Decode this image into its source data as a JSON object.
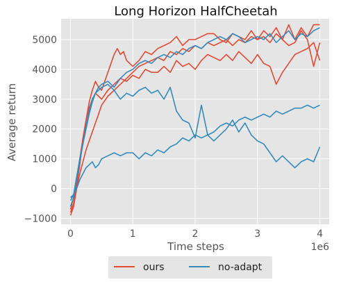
{
  "chart_data": {
    "type": "line",
    "title": "Long Horizon HalfCheetah",
    "xlabel": "Time steps",
    "ylabel": "Average return",
    "x_offset_label": "1e6",
    "xlim": [
      -0.15,
      4.15
    ],
    "ylim": [
      -1200,
      5700
    ],
    "xticks": [
      0,
      1,
      2,
      3,
      4
    ],
    "xtick_labels": [
      "0",
      "1",
      "2",
      "3",
      "4"
    ],
    "yticks": [
      -1000,
      0,
      1000,
      2000,
      3000,
      4000,
      5000
    ],
    "ytick_labels": [
      "−1000",
      "0",
      "1000",
      "2000",
      "3000",
      "4000",
      "5000"
    ],
    "grid": true,
    "legend_position": "bottom-center",
    "legend": [
      {
        "label": "ours",
        "color": "#e24a33"
      },
      {
        "label": "no-adapt",
        "color": "#348abd"
      }
    ],
    "background_color": "#e5e5e5",
    "series": [
      {
        "group": "ours",
        "color": "#e24a33",
        "x": [
          0.0,
          0.05,
          0.1,
          0.15,
          0.2,
          0.25,
          0.3,
          0.35,
          0.4,
          0.45,
          0.5,
          0.6,
          0.7,
          0.75,
          0.8,
          0.85,
          0.9,
          1.0,
          1.1,
          1.2,
          1.3,
          1.4,
          1.5,
          1.6,
          1.7,
          1.8,
          1.9,
          2.0,
          2.1,
          2.2,
          2.3,
          2.4,
          2.5,
          2.6,
          2.7,
          2.8,
          2.9,
          3.0,
          3.1,
          3.2,
          3.3,
          3.4,
          3.5,
          3.6,
          3.7,
          3.8,
          3.9,
          4.0
        ],
        "y": [
          -800,
          -500,
          100,
          800,
          1600,
          2300,
          2900,
          3300,
          3600,
          3400,
          3300,
          3900,
          4500,
          4700,
          4500,
          4600,
          4300,
          4100,
          4300,
          4600,
          4500,
          4700,
          4800,
          4900,
          5100,
          4800,
          5000,
          5000,
          5100,
          5200,
          5200,
          5000,
          4900,
          5200,
          5100,
          5000,
          5300,
          5000,
          5300,
          5100,
          5400,
          5000,
          5500,
          5000,
          5400,
          5100,
          5500,
          5500
        ]
      },
      {
        "group": "ours",
        "color": "#e24a33",
        "x": [
          0.0,
          0.05,
          0.1,
          0.15,
          0.2,
          0.25,
          0.3,
          0.35,
          0.4,
          0.45,
          0.5,
          0.6,
          0.7,
          0.8,
          0.9,
          1.0,
          1.1,
          1.2,
          1.3,
          1.4,
          1.5,
          1.6,
          1.7,
          1.8,
          1.9,
          2.0,
          2.1,
          2.2,
          2.3,
          2.4,
          2.5,
          2.6,
          2.7,
          2.8,
          2.9,
          3.0,
          3.1,
          3.2,
          3.3,
          3.4,
          3.5,
          3.6,
          3.7,
          3.8,
          3.9,
          4.0
        ],
        "y": [
          -700,
          -300,
          300,
          1000,
          1700,
          2300,
          2700,
          3000,
          3200,
          3100,
          3000,
          3300,
          3500,
          3700,
          3600,
          3800,
          3700,
          4000,
          3900,
          3900,
          4100,
          3900,
          4300,
          4100,
          4200,
          4000,
          4300,
          4500,
          4400,
          4300,
          4500,
          4300,
          4600,
          4400,
          4200,
          4500,
          4200,
          4100,
          3500,
          3900,
          4200,
          4500,
          4600,
          4700,
          4900,
          4300
        ]
      },
      {
        "group": "ours",
        "color": "#e24a33",
        "x": [
          0.0,
          0.05,
          0.1,
          0.15,
          0.2,
          0.25,
          0.3,
          0.35,
          0.4,
          0.45,
          0.5,
          0.6,
          0.7,
          0.8,
          0.9,
          1.0,
          1.1,
          1.2,
          1.3,
          1.4,
          1.5,
          1.6,
          1.7,
          1.8,
          1.9,
          2.0,
          2.1,
          2.2,
          2.3,
          2.4,
          2.5,
          2.6,
          2.7,
          2.8,
          2.9,
          3.0,
          3.1,
          3.2,
          3.3,
          3.4,
          3.5,
          3.6,
          3.7,
          3.8,
          3.9,
          4.0
        ],
        "y": [
          -900,
          -600,
          0,
          500,
          900,
          1300,
          1600,
          1900,
          2200,
          2500,
          2800,
          3100,
          3300,
          3500,
          3700,
          3900,
          4100,
          4200,
          4300,
          4400,
          4300,
          4600,
          4500,
          4700,
          4600,
          4800,
          4700,
          4900,
          4800,
          4900,
          5000,
          4800,
          5000,
          4900,
          5100,
          5000,
          5100,
          4900,
          5200,
          5000,
          4800,
          4900,
          5300,
          5000,
          4100,
          4900
        ]
      },
      {
        "group": "no-adapt",
        "color": "#348abd",
        "x": [
          0.0,
          0.05,
          0.1,
          0.15,
          0.2,
          0.25,
          0.3,
          0.35,
          0.4,
          0.45,
          0.5,
          0.6,
          0.7,
          0.8,
          0.9,
          1.0,
          1.1,
          1.2,
          1.3,
          1.4,
          1.5,
          1.6,
          1.7,
          1.8,
          1.9,
          2.0,
          2.1,
          2.2,
          2.3,
          2.4,
          2.5,
          2.6,
          2.7,
          2.8,
          2.9,
          3.0,
          3.1,
          3.2,
          3.3,
          3.4,
          3.5,
          3.6,
          3.7,
          3.8,
          3.9,
          4.0
        ],
        "y": [
          -400,
          -200,
          400,
          1000,
          1500,
          2000,
          2500,
          2900,
          3200,
          3400,
          3500,
          3600,
          3400,
          3700,
          3900,
          4000,
          4200,
          4300,
          4200,
          4400,
          4500,
          4400,
          4600,
          4500,
          4700,
          4800,
          4700,
          4900,
          5000,
          5100,
          5000,
          5200,
          5100,
          4900,
          5000,
          5100,
          5000,
          5200,
          4900,
          5100,
          5300,
          5000,
          5200,
          5100,
          5300,
          5400
        ]
      },
      {
        "group": "no-adapt",
        "color": "#348abd",
        "x": [
          0.0,
          0.05,
          0.1,
          0.15,
          0.2,
          0.25,
          0.3,
          0.35,
          0.4,
          0.45,
          0.5,
          0.6,
          0.7,
          0.8,
          0.9,
          1.0,
          1.1,
          1.2,
          1.3,
          1.4,
          1.5,
          1.6,
          1.7,
          1.8,
          1.9,
          2.0,
          2.1,
          2.2,
          2.3,
          2.4,
          2.5,
          2.6,
          2.7,
          2.8,
          2.9,
          3.0,
          3.1,
          3.2,
          3.3,
          3.4,
          3.5,
          3.6,
          3.7,
          3.8,
          3.9,
          4.0
        ],
        "y": [
          -600,
          -300,
          300,
          900,
          1500,
          2100,
          2600,
          3000,
          3200,
          3300,
          3400,
          3500,
          3300,
          3000,
          3200,
          3100,
          3300,
          3400,
          3200,
          3300,
          3000,
          3400,
          2600,
          2300,
          2200,
          1700,
          2800,
          1800,
          1600,
          1800,
          2000,
          2300,
          1900,
          2200,
          1800,
          1600,
          1500,
          1200,
          900,
          1100,
          900,
          700,
          900,
          1000,
          900,
          1400
        ]
      },
      {
        "group": "no-adapt",
        "color": "#348abd",
        "x": [
          0.0,
          0.05,
          0.1,
          0.15,
          0.2,
          0.25,
          0.3,
          0.35,
          0.4,
          0.45,
          0.5,
          0.6,
          0.7,
          0.8,
          0.9,
          1.0,
          1.1,
          1.2,
          1.3,
          1.4,
          1.5,
          1.6,
          1.7,
          1.8,
          1.9,
          2.0,
          2.1,
          2.2,
          2.3,
          2.4,
          2.5,
          2.6,
          2.7,
          2.8,
          2.9,
          3.0,
          3.1,
          3.2,
          3.3,
          3.4,
          3.5,
          3.6,
          3.7,
          3.8,
          3.9,
          4.0
        ],
        "y": [
          -300,
          -200,
          0,
          300,
          500,
          700,
          800,
          900,
          700,
          800,
          1000,
          1100,
          1200,
          1100,
          1200,
          1200,
          1000,
          1200,
          1100,
          1300,
          1200,
          1400,
          1500,
          1700,
          1600,
          1800,
          1700,
          1800,
          1900,
          2100,
          2200,
          2100,
          2300,
          2400,
          2300,
          2400,
          2500,
          2400,
          2600,
          2500,
          2600,
          2700,
          2700,
          2800,
          2700,
          2800
        ]
      }
    ]
  }
}
